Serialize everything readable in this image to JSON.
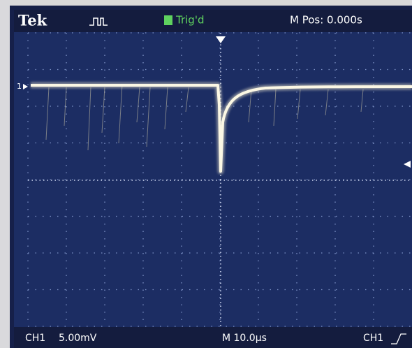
{
  "header": {
    "brand": "Tek",
    "status": "Trig'd",
    "position": "M Pos: 0.000s"
  },
  "channel_marker": "1",
  "footer": {
    "channel": "CH1",
    "scale": "5.00mV",
    "timebase": "M 10.0µs",
    "trigger_source": "CH1"
  }
}
